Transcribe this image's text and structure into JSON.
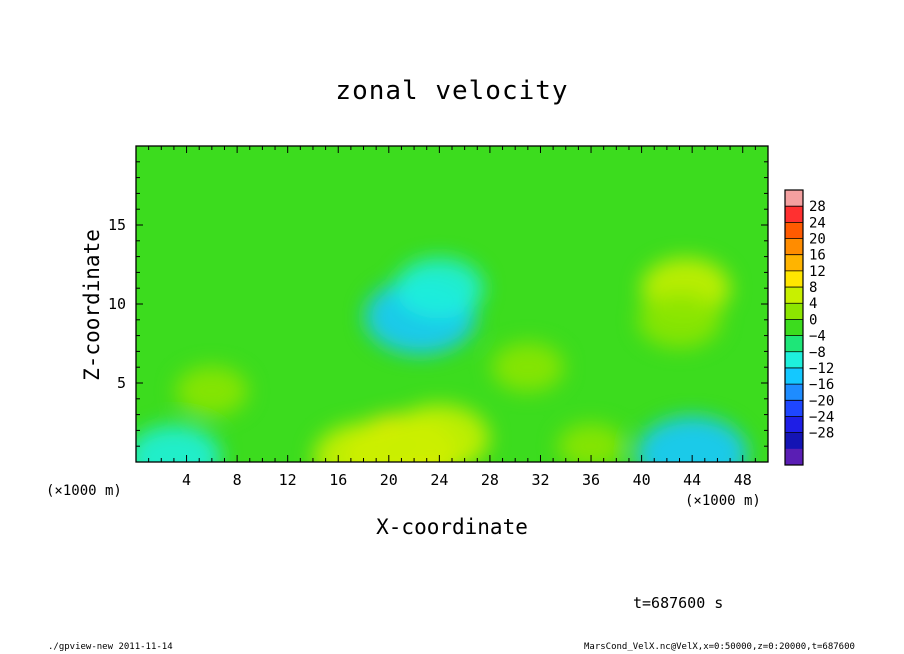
{
  "chart_data": {
    "type": "heatmap",
    "title": "zonal velocity",
    "xlabel": "X-coordinate",
    "ylabel": "Z-coordinate",
    "x_unit_label": "(×1000 m)",
    "x_unit_label_right": "(×1000 m)",
    "xlim": [
      0,
      50
    ],
    "ylim": [
      0,
      20
    ],
    "x_ticks": [
      4,
      8,
      12,
      16,
      20,
      24,
      28,
      32,
      36,
      40,
      44,
      48
    ],
    "y_ticks": [
      5,
      10,
      15
    ],
    "colorbar": {
      "levels": [
        28,
        24,
        20,
        16,
        12,
        8,
        4,
        0,
        -4,
        -8,
        -12,
        -16,
        -20,
        -24,
        -28
      ],
      "range": [
        -30,
        30
      ],
      "colors": [
        "#f4a0a0",
        "#ff3030",
        "#ff5a00",
        "#ff8c00",
        "#ffb400",
        "#ffe600",
        "#c8f000",
        "#8ce600",
        "#3cdc1e",
        "#1ee678",
        "#1ef0dc",
        "#14c8ff",
        "#1e8cff",
        "#1e46ff",
        "#1e1ee6",
        "#1414b4",
        "#5a1eb4"
      ]
    },
    "features": [
      {
        "x": 22.5,
        "z": 9.2,
        "value": -10
      },
      {
        "x": 24,
        "z": 11,
        "value": -6
      },
      {
        "x": 43.5,
        "z": 11,
        "value": 6
      },
      {
        "x": 43,
        "z": 9,
        "value": 5
      },
      {
        "x": 21,
        "z": 0.5,
        "value": 11
      },
      {
        "x": 24,
        "z": 1.5,
        "value": 8
      },
      {
        "x": 18,
        "z": 0.3,
        "value": 8
      },
      {
        "x": 3,
        "z": 0.3,
        "value": -7
      },
      {
        "x": 44,
        "z": 0.5,
        "value": -10
      },
      {
        "x": 31,
        "z": 6,
        "value": 3
      },
      {
        "x": 6,
        "z": 4.5,
        "value": 3
      },
      {
        "x": 36,
        "z": 1,
        "value": 2
      }
    ]
  },
  "info": {
    "time": "t=687600 s",
    "program": "./gpview-new  2011-11-14",
    "source": "MarsCond_VelX.nc@VelX,x=0:50000,z=0:20000,t=687600"
  }
}
